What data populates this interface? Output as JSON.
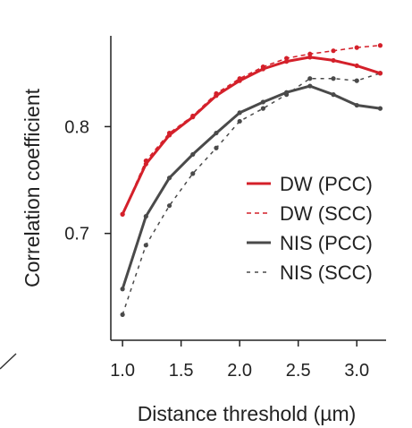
{
  "chart_data": {
    "type": "line",
    "title": "",
    "xlabel": "Distance threshold (µm)",
    "ylabel": "Correlation coefficient",
    "xlim": [
      0.9,
      3.25
    ],
    "ylim": [
      0.6,
      0.885
    ],
    "xticks": [
      1.0,
      1.5,
      2.0,
      2.5,
      3.0
    ],
    "xtick_labels": [
      "1.0",
      "1.5",
      "2.0",
      "2.5",
      "3.0"
    ],
    "yticks": [
      0.7,
      0.8
    ],
    "ytick_labels": [
      "0.7",
      "0.8"
    ],
    "grid": false,
    "legend_position": "center-right",
    "series": [
      {
        "name": "DW (PCC)",
        "color": "#d4202a",
        "dash": "solid",
        "x": [
          1.0,
          1.2,
          1.4,
          1.6,
          1.8,
          2.0,
          2.2,
          2.4,
          2.6,
          2.8,
          3.0,
          3.2
        ],
        "y": [
          0.718,
          0.765,
          0.792,
          0.809,
          0.829,
          0.843,
          0.854,
          0.861,
          0.865,
          0.862,
          0.857,
          0.85
        ]
      },
      {
        "name": "DW (SCC)",
        "color": "#d4202a",
        "dash": "dashed",
        "x": [
          1.0,
          1.2,
          1.4,
          1.6,
          1.8,
          2.0,
          2.2,
          2.4,
          2.6,
          2.8,
          3.0,
          3.2
        ],
        "y": [
          0.718,
          0.768,
          0.794,
          0.81,
          0.831,
          0.845,
          0.856,
          0.864,
          0.868,
          0.871,
          0.874,
          0.876
        ]
      },
      {
        "name": "NIS (PCC)",
        "color": "#4a4a4a",
        "dash": "solid",
        "x": [
          1.0,
          1.2,
          1.4,
          1.6,
          1.8,
          2.0,
          2.2,
          2.4,
          2.6,
          2.8,
          3.0,
          3.2
        ],
        "y": [
          0.648,
          0.716,
          0.752,
          0.774,
          0.794,
          0.813,
          0.823,
          0.832,
          0.838,
          0.83,
          0.82,
          0.817
        ]
      },
      {
        "name": "NIS (SCC)",
        "color": "#4a4a4a",
        "dash": "dotted",
        "x": [
          1.0,
          1.2,
          1.4,
          1.6,
          1.8,
          2.0,
          2.2,
          2.4,
          2.6,
          2.8,
          3.0,
          3.2
        ],
        "y": [
          0.624,
          0.689,
          0.726,
          0.756,
          0.78,
          0.805,
          0.817,
          0.83,
          0.845,
          0.845,
          0.843,
          0.85
        ]
      }
    ]
  }
}
